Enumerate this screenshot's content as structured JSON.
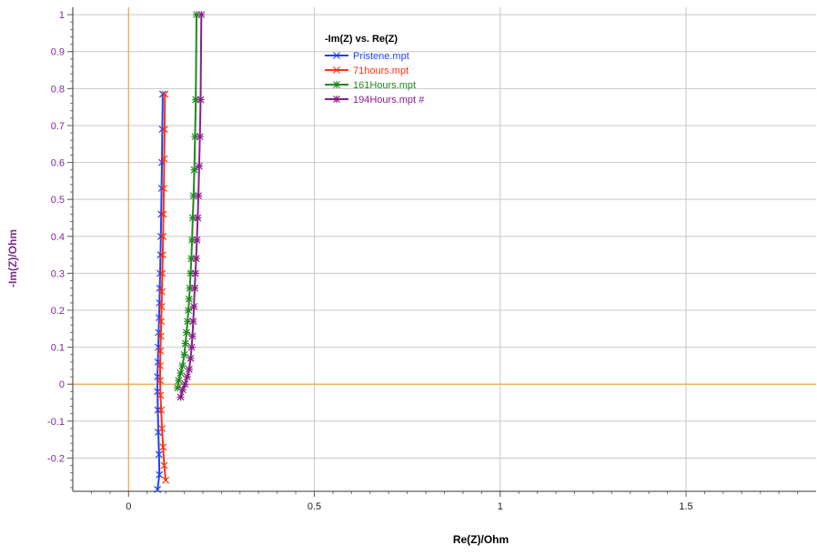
{
  "chart_data": {
    "type": "scatter",
    "title": "-Im(Z) vs. Re(Z)",
    "xlabel": "Re(Z)/Ohm",
    "ylabel": "-Im(Z)/Ohm",
    "xlim": [
      -0.15,
      1.85
    ],
    "ylim": [
      -0.29,
      1.02
    ],
    "x_ticks": [
      0,
      0.5,
      1,
      1.5
    ],
    "x_tick_labels": [
      "0",
      "0.5",
      "1",
      "1.5"
    ],
    "y_ticks": [
      -0.2,
      -0.1,
      0,
      0.1,
      0.2,
      0.3,
      0.4,
      0.5,
      0.6,
      0.7,
      0.8,
      0.9,
      1
    ],
    "y_tick_labels": [
      "-0.2",
      "-0.1",
      "0",
      "0.1",
      "0.2",
      "0.3",
      "0.4",
      "0.5",
      "0.6",
      "0.7",
      "0.8",
      "0.9",
      "1"
    ],
    "grid": true,
    "zero_lines_color": "#f0a040",
    "grid_color": "#c8c8c8",
    "legend_position": "top-center",
    "series": [
      {
        "name": "Pristene.mpt",
        "color": "#1f3fff",
        "marker": "x",
        "x": [
          0.078,
          0.083,
          0.082,
          0.08,
          0.079,
          0.078,
          0.078,
          0.079,
          0.08,
          0.081,
          0.082,
          0.083,
          0.084,
          0.085,
          0.086,
          0.087,
          0.088,
          0.089,
          0.09,
          0.091,
          0.092
        ],
        "y": [
          -0.285,
          -0.245,
          -0.19,
          -0.13,
          -0.07,
          -0.02,
          0.02,
          0.06,
          0.1,
          0.14,
          0.18,
          0.22,
          0.26,
          0.3,
          0.35,
          0.4,
          0.46,
          0.53,
          0.6,
          0.69,
          0.785
        ]
      },
      {
        "name": "71hours.mpt",
        "color": "#ff3010",
        "marker": "x",
        "x": [
          0.1,
          0.096,
          0.093,
          0.09,
          0.088,
          0.086,
          0.085,
          0.085,
          0.086,
          0.087,
          0.088,
          0.089,
          0.09,
          0.091,
          0.092,
          0.093,
          0.094,
          0.095,
          0.096,
          0.097,
          0.098
        ],
        "y": [
          -0.26,
          -0.22,
          -0.17,
          -0.12,
          -0.07,
          -0.03,
          0.01,
          0.05,
          0.09,
          0.13,
          0.17,
          0.21,
          0.25,
          0.3,
          0.35,
          0.4,
          0.46,
          0.53,
          0.61,
          0.69,
          0.785
        ]
      },
      {
        "name": "161Hours.mpt",
        "color": "#1e8a1e",
        "marker": "star",
        "x": [
          0.132,
          0.135,
          0.14,
          0.145,
          0.15,
          0.153,
          0.156,
          0.159,
          0.161,
          0.163,
          0.165,
          0.167,
          0.169,
          0.171,
          0.173,
          0.175,
          0.177,
          0.179,
          0.181,
          0.183
        ],
        "y": [
          -0.01,
          0.01,
          0.03,
          0.05,
          0.08,
          0.11,
          0.14,
          0.17,
          0.2,
          0.23,
          0.26,
          0.3,
          0.34,
          0.39,
          0.45,
          0.51,
          0.58,
          0.67,
          0.77,
          1.0
        ]
      },
      {
        "name": "194Hours.mpt #",
        "color": "#8a1e8a",
        "marker": "star",
        "x": [
          0.14,
          0.146,
          0.152,
          0.158,
          0.163,
          0.167,
          0.17,
          0.172,
          0.174,
          0.176,
          0.178,
          0.18,
          0.182,
          0.184,
          0.186,
          0.188,
          0.19,
          0.192,
          0.194,
          0.196
        ],
        "y": [
          -0.035,
          -0.015,
          0.0,
          0.02,
          0.04,
          0.07,
          0.1,
          0.13,
          0.17,
          0.21,
          0.26,
          0.3,
          0.34,
          0.39,
          0.45,
          0.51,
          0.59,
          0.67,
          0.77,
          1.0
        ]
      }
    ]
  }
}
